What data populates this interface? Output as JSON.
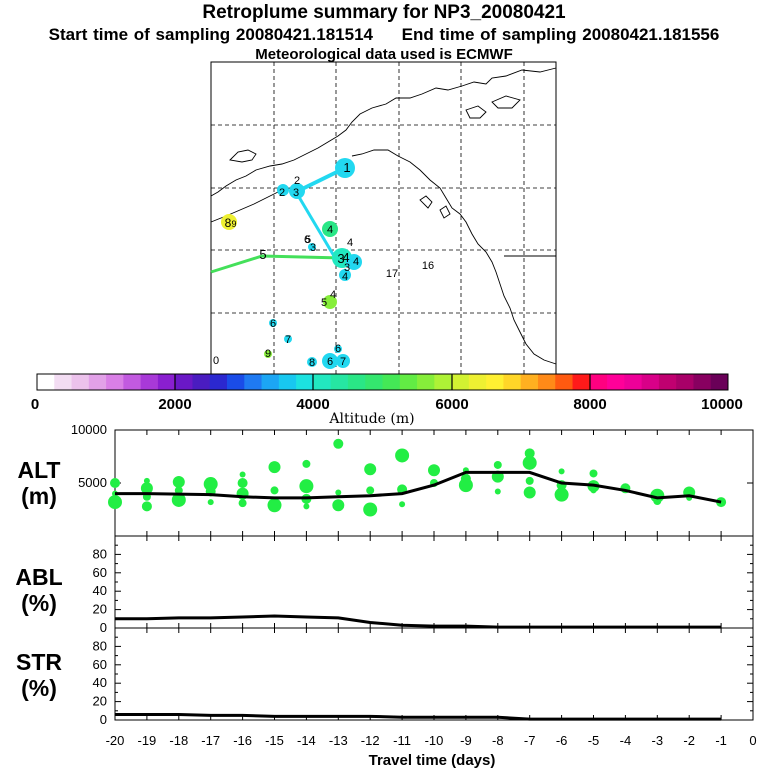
{
  "title_line1": "Retroplume summary for NP3_20080421",
  "start_label": "Start time of sampling 20080421.181514",
  "end_label": "End time of sampling 20080421.181556",
  "met_label": "Meteorological data used is ECMWF",
  "colors": {
    "palette": [
      "#ffffff",
      "#f3ddf3",
      "#ecc2ec",
      "#e2a1e8",
      "#d97fe6",
      "#c25ae0",
      "#a839d8",
      "#8a1fd0",
      "#6a18c6",
      "#4a1cc0",
      "#2b28d0",
      "#1a4ce8",
      "#1f7af2",
      "#1ca6f4",
      "#18c8f0",
      "#1ce2e0",
      "#22e8c0",
      "#26e6a2",
      "#2ae686",
      "#34e66e",
      "#44e856",
      "#62ec44",
      "#86ee3a",
      "#aef236",
      "#d2f232",
      "#eef032",
      "#fff032",
      "#ffd628",
      "#ffb020",
      "#ff8a18",
      "#ff5a10",
      "#ff1a1a",
      "#ff0080",
      "#ff0099",
      "#ee0099",
      "#d80088",
      "#c00070",
      "#a80068",
      "#880060",
      "#6a0058"
    ],
    "markers_map": "#22e8d0",
    "alt_points": "#22ee44",
    "line": "#000000"
  },
  "colorbar": {
    "labels": [
      "0",
      "2000",
      "4000",
      "6000",
      "8000",
      "10000"
    ],
    "title": "Altitude (m)"
  },
  "map_labels": [
    "1",
    "2",
    "3",
    "2",
    "8",
    "9",
    "4",
    "4",
    "6",
    "3",
    "5",
    "3",
    "4",
    "4",
    "3",
    "4",
    "17",
    "16",
    "4",
    "5",
    "6",
    "6",
    "7",
    "9",
    "8",
    "6",
    "7",
    "5",
    "0"
  ],
  "panels": {
    "alt": {
      "label_line1": "ALT",
      "label_line2": "(m)"
    },
    "abl": {
      "label_line1": "ABL",
      "label_line2": "(%)"
    },
    "str": {
      "label_line1": "STR",
      "label_line2": "(%)"
    }
  },
  "chart_data": {
    "type": "line",
    "x": [
      -20,
      -19,
      -18,
      -17,
      -16,
      -15,
      -14,
      -13,
      -12,
      -11,
      -10,
      -9,
      -8,
      -7,
      -6,
      -5,
      -4,
      -3,
      -2,
      -1
    ],
    "xlabel": "Travel time (days)",
    "xlim": [
      -20,
      0
    ],
    "xtick_labels": [
      "-20",
      "-19",
      "-18",
      "-17",
      "-16",
      "-15",
      "-14",
      "-13",
      "-12",
      "-11",
      "-10",
      "-9",
      "-8",
      "-7",
      "-6",
      "-5",
      "-4",
      "-3",
      "-2",
      "-1",
      "0"
    ],
    "series": [
      {
        "name": "ALT (m)",
        "ylim": [
          0,
          10000
        ],
        "ytick_labels": [
          "5000",
          "10000"
        ],
        "values": [
          4000,
          4000,
          3950,
          3900,
          3700,
          3600,
          3600,
          3700,
          3800,
          4000,
          4800,
          6000,
          6000,
          6000,
          5000,
          4800,
          4300,
          3600,
          3800,
          3200
        ]
      },
      {
        "name": "ABL (%)",
        "ylim": [
          0,
          100
        ],
        "ytick_labels": [
          "0",
          "20",
          "40",
          "60",
          "80"
        ],
        "values": [
          10,
          10,
          11,
          11,
          12,
          13,
          12,
          11,
          6,
          3,
          2,
          2,
          1,
          1,
          1,
          1,
          1,
          1,
          1,
          1
        ]
      },
      {
        "name": "STR (%)",
        "ylim": [
          0,
          100
        ],
        "ytick_labels": [
          "0",
          "20",
          "40",
          "60",
          "80"
        ],
        "values": [
          6,
          6,
          6,
          5,
          5,
          4,
          4,
          4,
          4,
          3,
          3,
          3,
          3,
          1,
          1,
          1,
          1,
          1,
          1,
          1
        ]
      }
    ],
    "alt_scatter": [
      [
        -20,
        4000
      ],
      [
        -20,
        5000
      ],
      [
        -20,
        3200
      ],
      [
        -19,
        3700
      ],
      [
        -19,
        4500
      ],
      [
        -19,
        5200
      ],
      [
        -19,
        2800
      ],
      [
        -18,
        3400
      ],
      [
        -18,
        4300
      ],
      [
        -18,
        5100
      ],
      [
        -17,
        3200
      ],
      [
        -17,
        4200
      ],
      [
        -17,
        4900
      ],
      [
        -16,
        3100
      ],
      [
        -16,
        4000
      ],
      [
        -16,
        5800
      ],
      [
        -16,
        5000
      ],
      [
        -15,
        2900
      ],
      [
        -15,
        4300
      ],
      [
        -15,
        6500
      ],
      [
        -14,
        2800
      ],
      [
        -14,
        3500
      ],
      [
        -14,
        4700
      ],
      [
        -14,
        6800
      ],
      [
        -13,
        2900
      ],
      [
        -13,
        4100
      ],
      [
        -13,
        8700
      ],
      [
        -12,
        2500
      ],
      [
        -12,
        4300
      ],
      [
        -12,
        6300
      ],
      [
        -11,
        3000
      ],
      [
        -11,
        4400
      ],
      [
        -11,
        7600
      ],
      [
        -10,
        5000
      ],
      [
        -10,
        6200
      ],
      [
        -9,
        6200
      ],
      [
        -9,
        5400
      ],
      [
        -9,
        4800
      ],
      [
        -8,
        6700
      ],
      [
        -8,
        5600
      ],
      [
        -8,
        4200
      ],
      [
        -7,
        7800
      ],
      [
        -7,
        6900
      ],
      [
        -7,
        5200
      ],
      [
        -7,
        4100
      ],
      [
        -6,
        6100
      ],
      [
        -6,
        4800
      ],
      [
        -6,
        3900
      ],
      [
        -5,
        5900
      ],
      [
        -5,
        4700
      ],
      [
        -5,
        4300
      ],
      [
        -4,
        4500
      ],
      [
        -3,
        3800
      ],
      [
        -3,
        3300
      ],
      [
        -2,
        4100
      ],
      [
        -2,
        3600
      ],
      [
        -1,
        3200
      ]
    ]
  }
}
